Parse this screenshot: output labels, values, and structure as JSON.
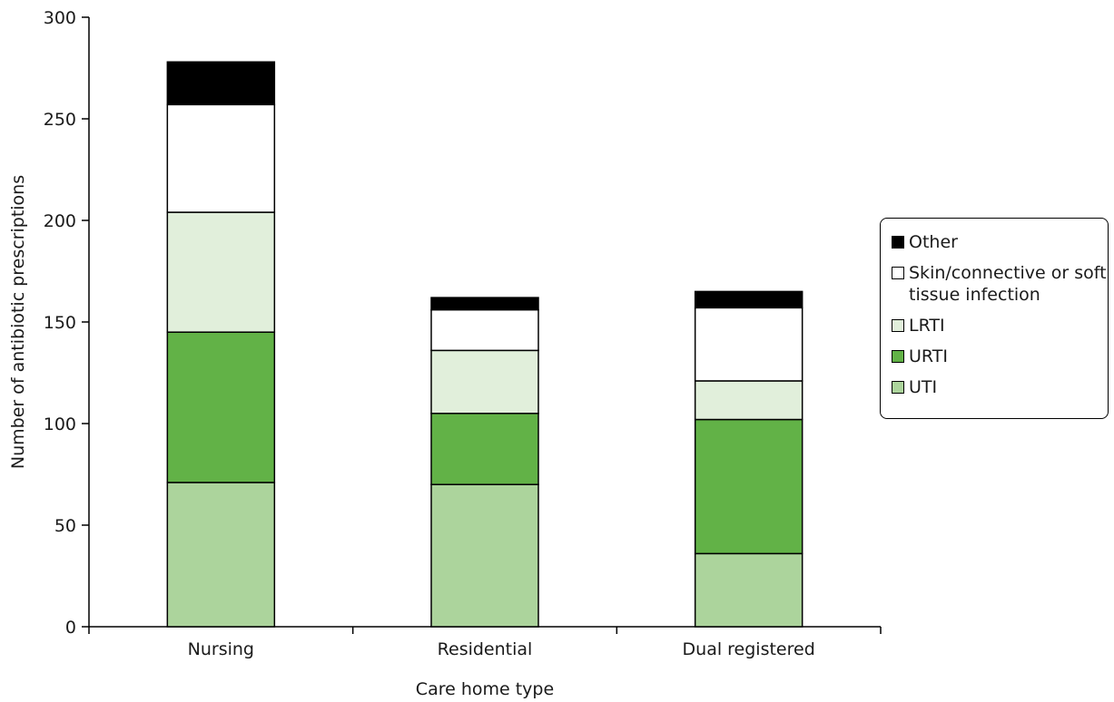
{
  "chart_data": {
    "type": "bar",
    "stacked": true,
    "categories": [
      "Nursing",
      "Residential",
      "Dual registered"
    ],
    "series": [
      {
        "name": "UTI",
        "color": "#acd49c",
        "values": [
          71,
          70,
          36
        ]
      },
      {
        "name": "URTI",
        "color": "#62b247",
        "values": [
          74,
          35,
          66
        ]
      },
      {
        "name": "LRTI",
        "color": "#e1efdb",
        "values": [
          59,
          31,
          19
        ]
      },
      {
        "name": "Skin/connective or soft tissue infection",
        "color": "#ffffff",
        "values": [
          53,
          20,
          36
        ]
      },
      {
        "name": "Other",
        "color": "#000000",
        "values": [
          21,
          6,
          8
        ]
      }
    ],
    "legend_order": [
      4,
      3,
      2,
      1,
      0
    ],
    "xlabel": "Care home type",
    "ylabel": "Number of antibiotic prescriptions",
    "ylim": [
      0,
      300
    ],
    "yticks": [
      0,
      50,
      100,
      150,
      200,
      250,
      300
    ],
    "grid": false,
    "legend_position": "right"
  }
}
